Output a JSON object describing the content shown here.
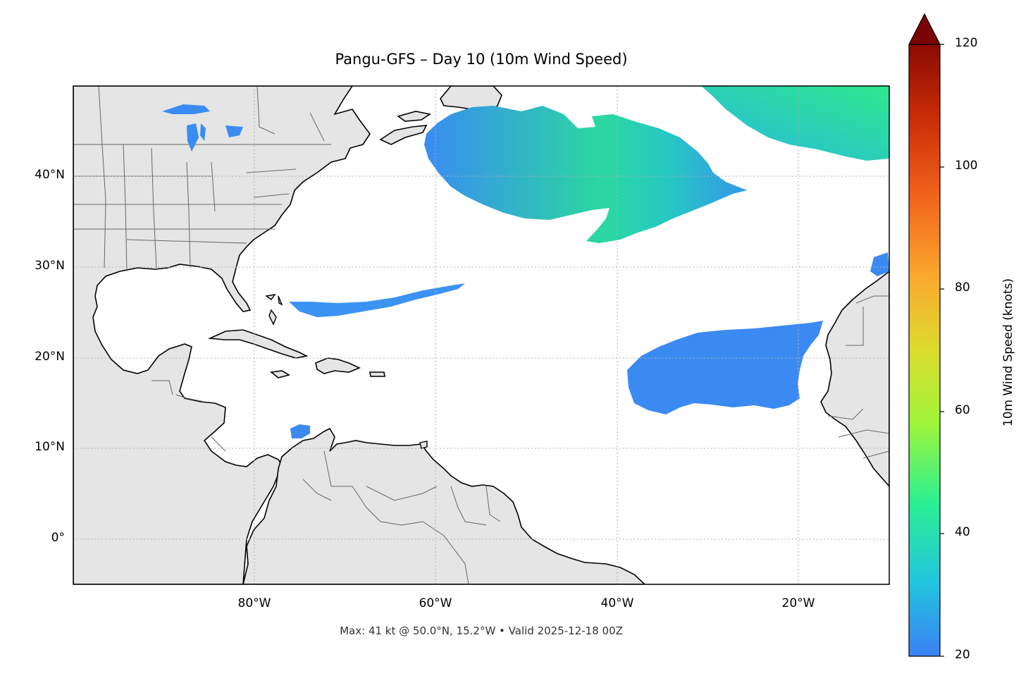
{
  "title": "Pangu-GFS – Day 10 (10m Wind Speed)",
  "footer": "Max: 41 kt @ 50.0°N, 15.2°W • Valid 2025-12-18 00Z",
  "map": {
    "extent": {
      "lon": [
        -100,
        -10
      ],
      "lat": [
        -5,
        50
      ]
    },
    "lat_ticks": [
      "40°N",
      "30°N",
      "20°N",
      "10°N",
      "0°"
    ],
    "lon_ticks": [
      "80°W",
      "60°W",
      "40°W",
      "20°W"
    ],
    "gridlines": "dotted",
    "land_color": "#e5e5e5",
    "coast_color": "#000000"
  },
  "colorbar": {
    "label": "10m Wind Speed (knots)",
    "range": [
      20,
      120
    ],
    "ticks": [
      "20",
      "40",
      "60",
      "80",
      "100",
      "120"
    ],
    "extend": "max",
    "colormap": [
      "#3b80f4",
      "#22c5df",
      "#2af093",
      "#9ef53a",
      "#dcdc2d",
      "#fba82e",
      "#f2641b",
      "#c92d06",
      "#8b0a02"
    ]
  }
}
